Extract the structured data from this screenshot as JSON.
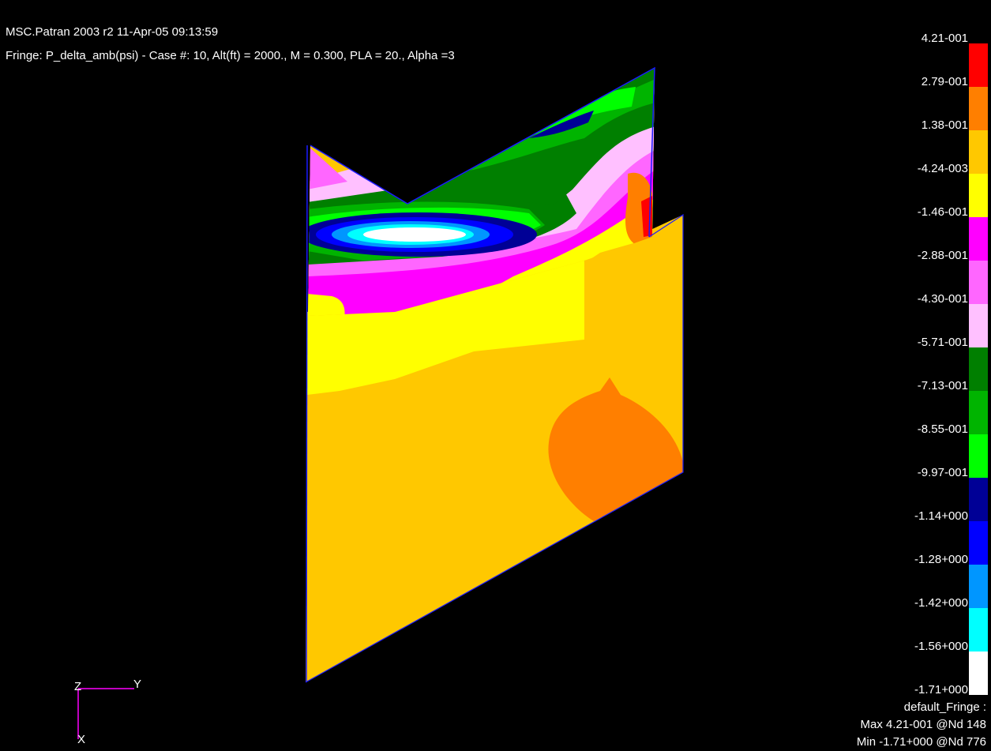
{
  "header": {
    "line1": "MSC.Patran 2003 r2 11-Apr-05 09:13:59",
    "line2": "Fringe: P_delta_amb(psi) - Case #:  10, Alt(ft) = 2000., M = 0.300, PLA = 20., Alpha =3"
  },
  "legend": {
    "colors": [
      "#000000",
      "#ff0000",
      "#ff7f00",
      "#ffc800",
      "#ffff00",
      "#ff00ff",
      "#ff66ff",
      "#ffc0ff",
      "#007f00",
      "#00b400",
      "#00ff00",
      "#000096",
      "#0000ff",
      "#0096ff",
      "#00ffff",
      "#ffffff"
    ],
    "labels": [
      "4.21-001",
      "2.79-001",
      "1.38-001",
      "-4.24-003",
      "-1.46-001",
      "-2.88-001",
      "-4.30-001",
      "-5.71-001",
      "-7.13-001",
      "-8.55-001",
      "-9.97-001",
      "-1.14+000",
      "-1.28+000",
      "-1.42+000",
      "-1.56+000",
      "-1.71+000"
    ]
  },
  "axes": {
    "z": "Z",
    "y": "Y",
    "x": "X"
  },
  "footer": {
    "title": "default_Fringe :",
    "max": "Max 4.21-001 @Nd 148",
    "min": "Min -1.71+000 @Nd 776"
  }
}
